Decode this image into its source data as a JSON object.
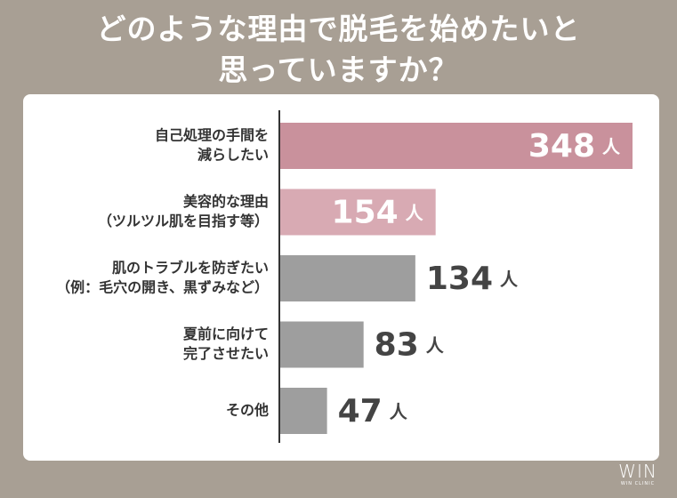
{
  "title_lines": [
    "どのような理由で脱毛を始めたいと",
    "思っていますか？"
  ],
  "chart_data": {
    "type": "bar",
    "orientation": "horizontal",
    "categories": [
      [
        "自己処理の手間を",
        "減らしたい"
      ],
      [
        "美容的な理由",
        "（ツルツル肌を目指す等）"
      ],
      [
        "肌のトラブルを防ぎたい",
        "（例：毛穴の開き、黒ずみなど）"
      ],
      [
        "夏前に向けて",
        "完了させたい"
      ],
      [
        "その他"
      ]
    ],
    "values": [
      348,
      154,
      134,
      83,
      47
    ],
    "unit": "人",
    "bar_colors": [
      "#c9919c",
      "#d8aab3",
      "#9e9e9e",
      "#9e9e9e",
      "#9e9e9e"
    ],
    "label_inside": [
      true,
      true,
      false,
      false,
      false
    ],
    "xlim": [
      0,
      348
    ]
  },
  "logo": {
    "main": "WIN",
    "sub": "WIN CLINIC"
  }
}
